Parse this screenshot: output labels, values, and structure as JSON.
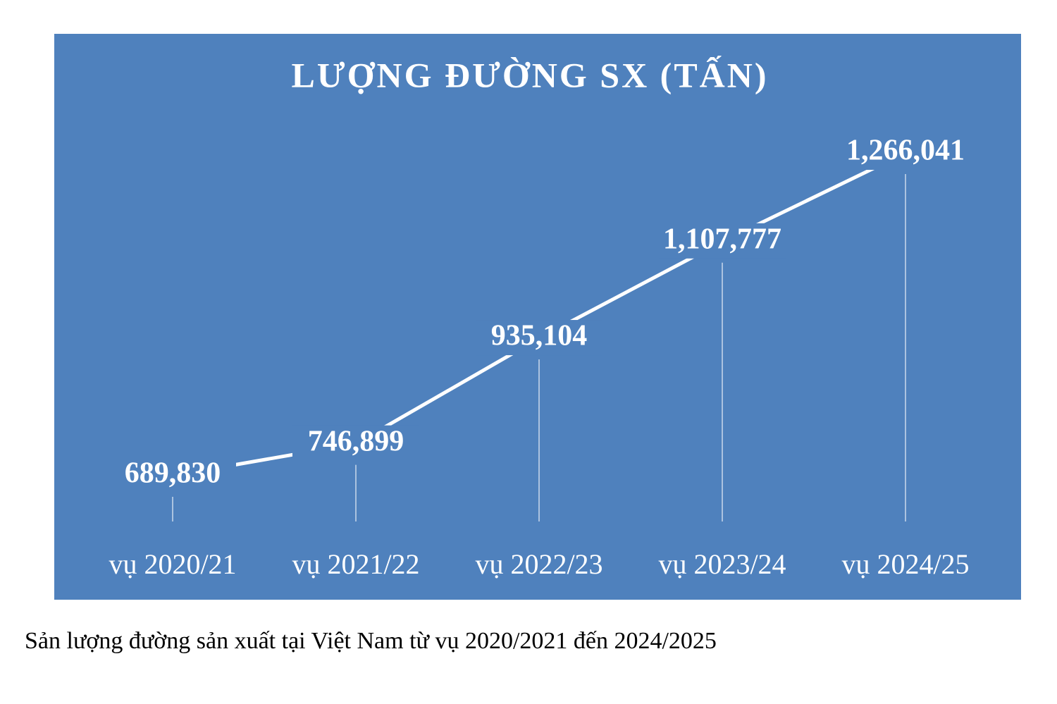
{
  "chart_data": {
    "type": "line",
    "title": "LƯỢNG ĐƯỜNG SX (TẤN)",
    "categories": [
      "vụ 2020/21",
      "vụ 2021/22",
      "vụ 2022/23",
      "vụ 2023/24",
      "vụ 2024/25"
    ],
    "values": [
      689830,
      746899,
      935104,
      1107777,
      1266041
    ],
    "value_labels": [
      "689,830",
      "746,899",
      "935,104",
      "1,107,777",
      "1,266,041"
    ],
    "color": "#ffffff",
    "background": "#4f81bd",
    "caption": "Sản lượng đường sản xuất tại Việt Nam từ vụ 2020/2021 đến 2024/2025"
  }
}
